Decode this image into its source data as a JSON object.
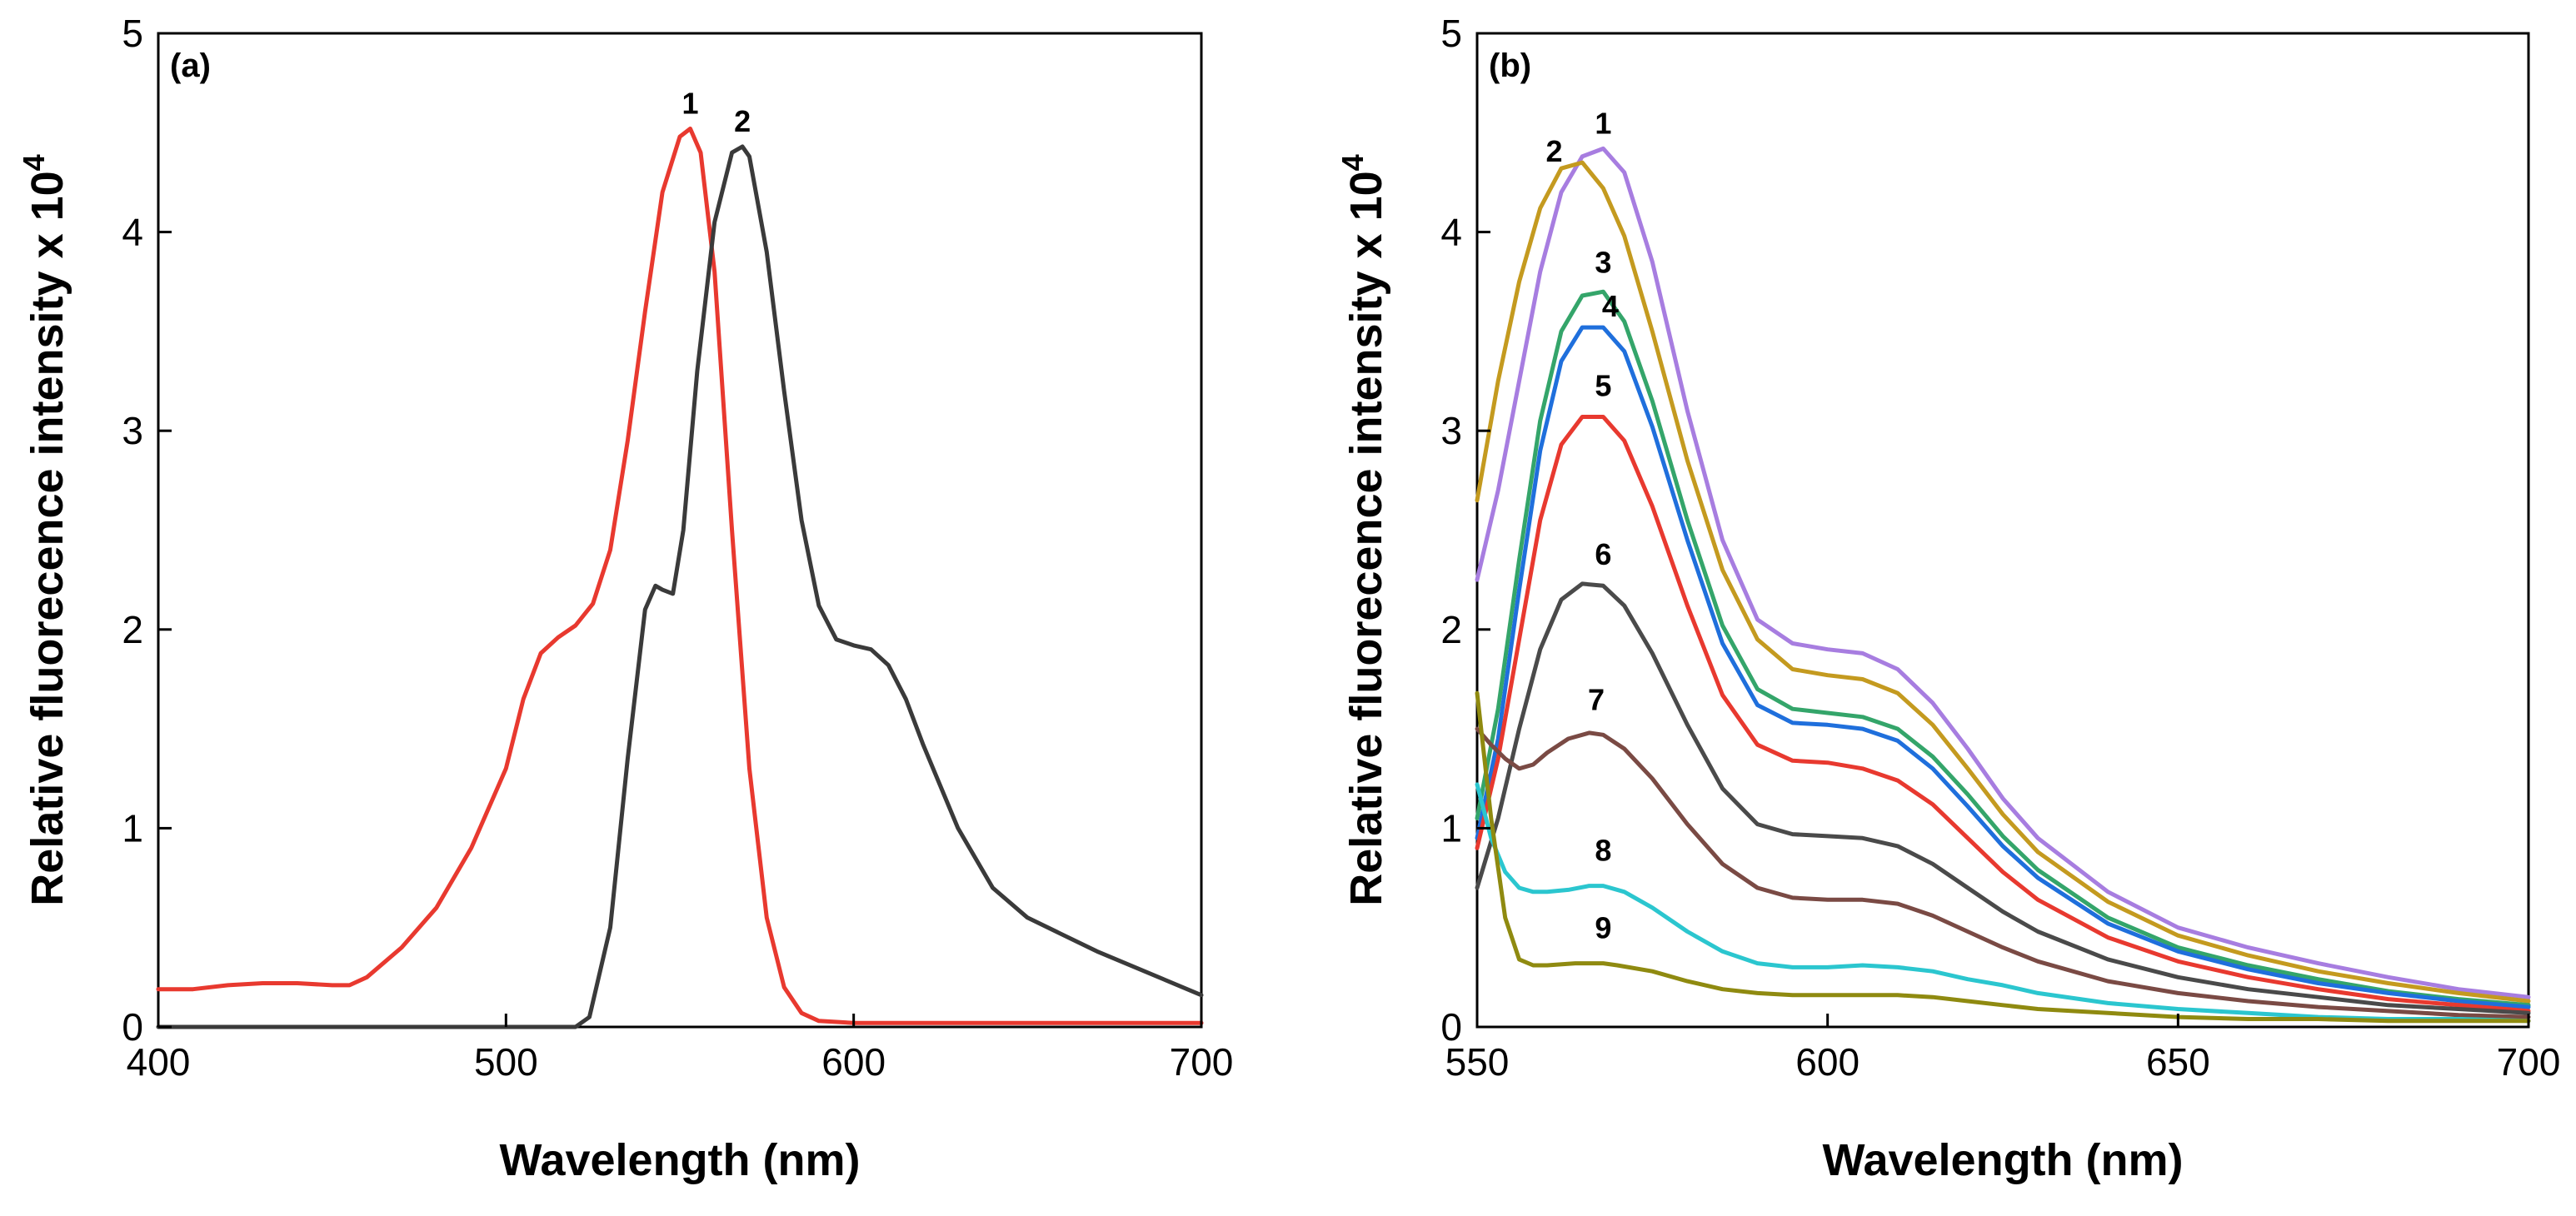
{
  "chart_data": [
    {
      "type": "line",
      "panel_label": "(a)",
      "xlabel": "Wavelength (nm)",
      "ylabel": "Relative fluorecence intensity x 10",
      "ylabel_exponent": "4",
      "xlim": [
        400,
        700
      ],
      "ylim": [
        0,
        5
      ],
      "xticks": [
        400,
        500,
        600,
        700
      ],
      "yticks": [
        0,
        1,
        2,
        3,
        4,
        5
      ],
      "grid": false,
      "series": [
        {
          "name": "1",
          "color": "#e8392f",
          "x": [
            400,
            410,
            420,
            430,
            440,
            450,
            455,
            460,
            470,
            480,
            490,
            500,
            505,
            510,
            515,
            520,
            525,
            530,
            535,
            540,
            545,
            550,
            553,
            556,
            560,
            565,
            570,
            575,
            580,
            585,
            590,
            600,
            620,
            650,
            700
          ],
          "y": [
            0.19,
            0.19,
            0.21,
            0.22,
            0.22,
            0.21,
            0.21,
            0.25,
            0.4,
            0.6,
            0.9,
            1.3,
            1.65,
            1.88,
            1.96,
            2.02,
            2.13,
            2.4,
            2.95,
            3.6,
            4.2,
            4.48,
            4.52,
            4.4,
            3.8,
            2.5,
            1.3,
            0.55,
            0.2,
            0.07,
            0.03,
            0.02,
            0.02,
            0.02,
            0.02
          ],
          "label_at": [
            553,
            4.52
          ]
        },
        {
          "name": "2",
          "color": "#3a3a3a",
          "x": [
            400,
            520,
            524,
            530,
            535,
            540,
            543,
            545,
            548,
            551,
            555,
            560,
            565,
            568,
            570,
            575,
            580,
            585,
            590,
            595,
            600,
            605,
            610,
            615,
            620,
            630,
            640,
            650,
            670,
            700
          ],
          "y": [
            0,
            0,
            0.05,
            0.5,
            1.35,
            2.1,
            2.22,
            2.2,
            2.18,
            2.5,
            3.3,
            4.05,
            4.4,
            4.43,
            4.38,
            3.9,
            3.2,
            2.55,
            2.12,
            1.95,
            1.92,
            1.9,
            1.82,
            1.65,
            1.42,
            1.0,
            0.7,
            0.55,
            0.38,
            0.16
          ],
          "label_at": [
            568,
            4.43
          ]
        }
      ]
    },
    {
      "type": "line",
      "panel_label": "(b)",
      "xlabel": "Wavelength (nm)",
      "ylabel": "Relative fluorecence intensity x 10",
      "ylabel_exponent": "4",
      "xlim": [
        550,
        700
      ],
      "ylim": [
        0,
        5
      ],
      "xticks": [
        550,
        600,
        650,
        700
      ],
      "yticks": [
        0,
        1,
        2,
        3,
        4,
        5
      ],
      "grid": false,
      "series": [
        {
          "name": "1",
          "color": "#a77de0",
          "x": [
            550,
            553,
            556,
            559,
            562,
            565,
            568,
            571,
            575,
            580,
            585,
            590,
            595,
            600,
            605,
            610,
            615,
            620,
            625,
            630,
            640,
            650,
            660,
            670,
            680,
            690,
            700
          ],
          "y": [
            2.25,
            2.7,
            3.25,
            3.8,
            4.2,
            4.38,
            4.42,
            4.3,
            3.85,
            3.1,
            2.45,
            2.05,
            1.93,
            1.9,
            1.88,
            1.8,
            1.63,
            1.4,
            1.15,
            0.95,
            0.68,
            0.5,
            0.4,
            0.32,
            0.25,
            0.19,
            0.15
          ]
        },
        {
          "name": "2",
          "color": "#c49a1f",
          "x": [
            550,
            553,
            556,
            559,
            562,
            565,
            568,
            571,
            575,
            580,
            585,
            590,
            595,
            600,
            605,
            610,
            615,
            620,
            625,
            630,
            640,
            650,
            660,
            670,
            680,
            690,
            700
          ],
          "y": [
            2.65,
            3.25,
            3.75,
            4.12,
            4.32,
            4.35,
            4.22,
            3.98,
            3.5,
            2.85,
            2.3,
            1.95,
            1.8,
            1.77,
            1.75,
            1.68,
            1.52,
            1.3,
            1.07,
            0.88,
            0.63,
            0.46,
            0.36,
            0.28,
            0.22,
            0.17,
            0.13
          ]
        },
        {
          "name": "3",
          "color": "#34a56a",
          "x": [
            550,
            553,
            556,
            559,
            562,
            565,
            568,
            571,
            575,
            580,
            585,
            590,
            595,
            600,
            605,
            610,
            615,
            620,
            625,
            630,
            640,
            650,
            660,
            670,
            680,
            690,
            700
          ],
          "y": [
            1.05,
            1.6,
            2.35,
            3.05,
            3.5,
            3.68,
            3.7,
            3.55,
            3.15,
            2.55,
            2.02,
            1.7,
            1.6,
            1.58,
            1.56,
            1.5,
            1.36,
            1.17,
            0.96,
            0.79,
            0.55,
            0.4,
            0.31,
            0.24,
            0.18,
            0.14,
            0.11
          ]
        },
        {
          "name": "4",
          "color": "#1f6fdc",
          "x": [
            550,
            553,
            556,
            559,
            562,
            565,
            568,
            571,
            575,
            580,
            585,
            590,
            595,
            600,
            605,
            610,
            615,
            620,
            625,
            630,
            640,
            650,
            660,
            670,
            680,
            690,
            700
          ],
          "y": [
            0.95,
            1.45,
            2.2,
            2.9,
            3.35,
            3.52,
            3.52,
            3.4,
            3.02,
            2.45,
            1.93,
            1.62,
            1.53,
            1.52,
            1.5,
            1.44,
            1.3,
            1.11,
            0.91,
            0.75,
            0.52,
            0.38,
            0.29,
            0.22,
            0.17,
            0.13,
            0.1
          ]
        },
        {
          "name": "5",
          "color": "#e8392f",
          "x": [
            550,
            553,
            556,
            559,
            562,
            565,
            568,
            571,
            575,
            580,
            585,
            590,
            595,
            600,
            605,
            610,
            615,
            620,
            625,
            630,
            640,
            650,
            660,
            670,
            680,
            690,
            700
          ],
          "y": [
            0.9,
            1.35,
            1.95,
            2.55,
            2.93,
            3.07,
            3.07,
            2.95,
            2.62,
            2.12,
            1.67,
            1.42,
            1.34,
            1.33,
            1.3,
            1.24,
            1.12,
            0.95,
            0.78,
            0.64,
            0.45,
            0.33,
            0.25,
            0.19,
            0.14,
            0.11,
            0.08
          ]
        },
        {
          "name": "6",
          "color": "#4a4a4a",
          "x": [
            550,
            553,
            556,
            559,
            562,
            565,
            568,
            571,
            575,
            580,
            585,
            590,
            595,
            600,
            605,
            610,
            615,
            620,
            625,
            630,
            640,
            650,
            660,
            670,
            680,
            690,
            700
          ],
          "y": [
            0.7,
            1.05,
            1.5,
            1.9,
            2.15,
            2.23,
            2.22,
            2.12,
            1.88,
            1.52,
            1.2,
            1.02,
            0.97,
            0.96,
            0.95,
            0.91,
            0.82,
            0.7,
            0.58,
            0.48,
            0.34,
            0.25,
            0.19,
            0.15,
            0.11,
            0.09,
            0.07
          ]
        },
        {
          "name": "7",
          "color": "#7a4a44",
          "x": [
            550,
            552,
            554,
            556,
            558,
            560,
            563,
            566,
            568,
            571,
            575,
            580,
            585,
            590,
            595,
            600,
            605,
            610,
            615,
            620,
            625,
            630,
            640,
            650,
            660,
            670,
            680,
            690,
            700
          ],
          "y": [
            1.5,
            1.42,
            1.35,
            1.3,
            1.32,
            1.38,
            1.45,
            1.48,
            1.47,
            1.4,
            1.25,
            1.02,
            0.82,
            0.7,
            0.65,
            0.64,
            0.64,
            0.62,
            0.56,
            0.48,
            0.4,
            0.33,
            0.23,
            0.17,
            0.13,
            0.1,
            0.08,
            0.06,
            0.05
          ]
        },
        {
          "name": "8",
          "color": "#2bc6cf",
          "x": [
            550,
            552,
            554,
            556,
            558,
            560,
            563,
            566,
            568,
            571,
            575,
            580,
            585,
            590,
            595,
            600,
            605,
            610,
            615,
            620,
            625,
            630,
            640,
            650,
            660,
            670,
            680,
            690,
            700
          ],
          "y": [
            1.22,
            0.95,
            0.78,
            0.7,
            0.68,
            0.68,
            0.69,
            0.71,
            0.71,
            0.68,
            0.6,
            0.48,
            0.38,
            0.32,
            0.3,
            0.3,
            0.31,
            0.3,
            0.28,
            0.24,
            0.21,
            0.17,
            0.12,
            0.09,
            0.07,
            0.05,
            0.04,
            0.04,
            0.03
          ]
        },
        {
          "name": "9",
          "color": "#8f8a10",
          "x": [
            550,
            552,
            554,
            556,
            558,
            560,
            564,
            568,
            570,
            575,
            580,
            585,
            590,
            595,
            600,
            605,
            610,
            615,
            620,
            625,
            630,
            640,
            650,
            660,
            670,
            680,
            690,
            700
          ],
          "y": [
            1.68,
            1.05,
            0.55,
            0.34,
            0.31,
            0.31,
            0.32,
            0.32,
            0.31,
            0.28,
            0.23,
            0.19,
            0.17,
            0.16,
            0.16,
            0.16,
            0.16,
            0.15,
            0.13,
            0.11,
            0.09,
            0.07,
            0.05,
            0.04,
            0.04,
            0.03,
            0.03,
            0.03
          ]
        }
      ],
      "curve_labels": [
        {
          "text": "1",
          "x": 568,
          "y": 4.42
        },
        {
          "text": "2",
          "x": 561,
          "y": 4.28
        },
        {
          "text": "3",
          "x": 568,
          "y": 3.72
        },
        {
          "text": "4",
          "x": 569,
          "y": 3.5
        },
        {
          "text": "5",
          "x": 568,
          "y": 3.1
        },
        {
          "text": "6",
          "x": 568,
          "y": 2.25
        },
        {
          "text": "7",
          "x": 567,
          "y": 1.52
        },
        {
          "text": "8",
          "x": 568,
          "y": 0.76
        },
        {
          "text": "9",
          "x": 568,
          "y": 0.37
        }
      ]
    }
  ]
}
